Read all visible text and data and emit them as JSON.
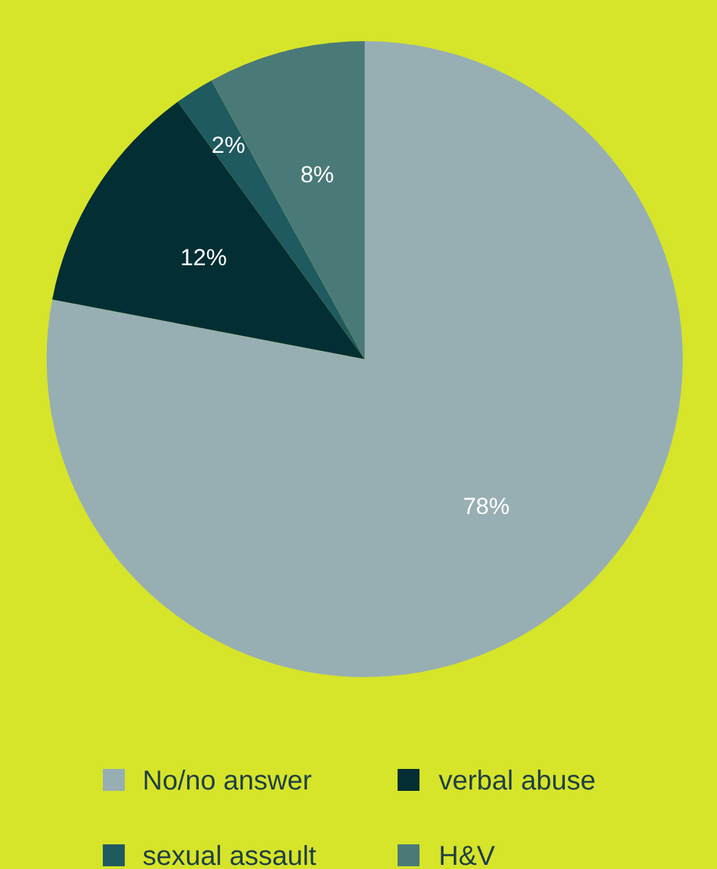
{
  "chart_data": {
    "type": "pie",
    "categories": [
      "No/no answer",
      "verbal abuse",
      "sexual assault",
      "H&V"
    ],
    "values": [
      78,
      12,
      2,
      8
    ],
    "colors": [
      "#97afb3",
      "#032e33",
      "#1f5a60",
      "#4a7a78"
    ],
    "value_labels": [
      "78%",
      "12%",
      "2%",
      "8%"
    ],
    "legend": "bottom"
  }
}
